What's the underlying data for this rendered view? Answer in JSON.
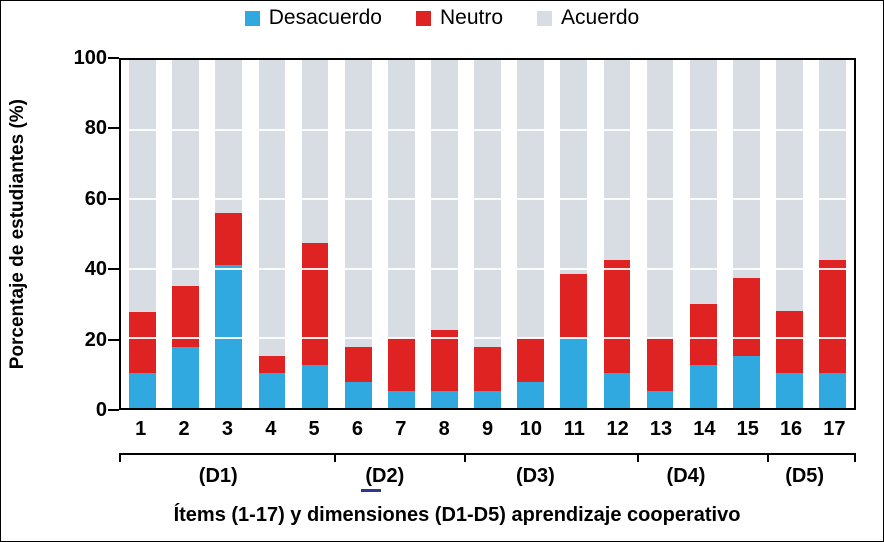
{
  "chart_data": {
    "type": "bar",
    "variant": "stacked-100",
    "title": "",
    "xlabel": "Ítems (1-17) y dimensiones (D1-D5) aprendizaje cooperativo",
    "ylabel": "Porcentaje de estudiantes (%)",
    "ylim": [
      0,
      100
    ],
    "yticks": [
      0,
      20,
      40,
      60,
      80,
      100
    ],
    "grid": "horizontal-white-on-bars",
    "legend_position": "top-center",
    "categories": [
      "1",
      "2",
      "3",
      "4",
      "5",
      "6",
      "7",
      "8",
      "9",
      "10",
      "11",
      "12",
      "13",
      "14",
      "15",
      "16",
      "17"
    ],
    "series": [
      {
        "name": "Desacuerdo",
        "color": "#2FA9DF",
        "values": [
          10,
          17.5,
          41,
          10,
          12.5,
          7.5,
          5,
          5,
          5,
          7.5,
          20,
          10,
          5,
          12.5,
          15,
          10,
          10
        ]
      },
      {
        "name": "Neutro",
        "color": "#DF2322",
        "values": [
          17.5,
          17.5,
          15,
          5,
          35,
          10,
          15,
          17.5,
          12.5,
          12.5,
          18.5,
          32.5,
          15,
          17.5,
          22.5,
          18,
          32.5
        ]
      },
      {
        "name": "Acuerdo",
        "color": "#D8DCE3",
        "values": [
          72.5,
          65,
          44,
          85,
          52.5,
          82.5,
          80,
          77.5,
          82.5,
          80,
          61.5,
          57.5,
          80,
          70,
          62.5,
          72,
          57.5
        ]
      }
    ],
    "groups": [
      {
        "label": "(D1)",
        "items": 5
      },
      {
        "label": "(D2)",
        "items": 3
      },
      {
        "label": "(D3)",
        "items": 4
      },
      {
        "label": "(D4)",
        "items": 3
      },
      {
        "label": "(D5)",
        "items": 2
      }
    ]
  },
  "decorations": {
    "stray_underscore_color": "#2B3990"
  }
}
